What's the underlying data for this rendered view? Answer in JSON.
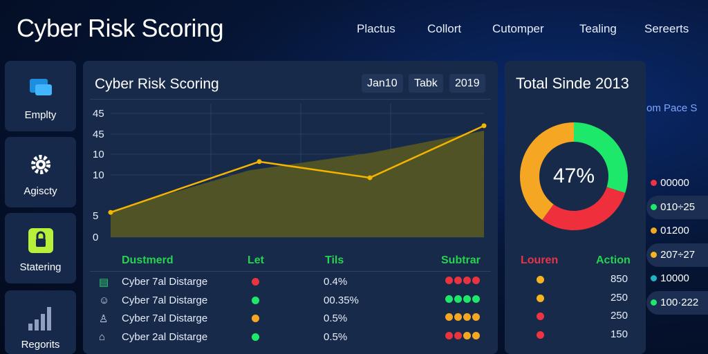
{
  "header": {
    "title": "Cyber Risk Scoring",
    "nav": [
      "Plactus",
      "Collort",
      "Cutomper",
      "Tealing",
      "Sereerts"
    ]
  },
  "sidebar": {
    "items": [
      {
        "label": "Emplty",
        "icon": "monitor-icon"
      },
      {
        "label": "Agiscty",
        "icon": "gear-icon"
      },
      {
        "label": "Statering",
        "icon": "lock-icon"
      },
      {
        "label": "Regorits",
        "icon": "bar-chart-icon"
      }
    ]
  },
  "main": {
    "title": "Cyber Risk Scoring",
    "chips": [
      "Jan10",
      "Tabk",
      "2019"
    ],
    "table": {
      "headers": [
        "Dustmerd",
        "Let",
        "Tils",
        "Subtrar"
      ],
      "rows": [
        {
          "icon": "document-icon",
          "name": "Cyber 7al Distarge",
          "let": "#e8343f",
          "tils": "0.4%",
          "subtrar": [
            "#e8343f",
            "#e8343f",
            "#e8343f",
            "#e8343f"
          ]
        },
        {
          "icon": "head-icon",
          "name": "Cyber 7al Distarge",
          "let": "#1ee86a",
          "tils": "00.35%",
          "subtrar": [
            "#1ee86a",
            "#1ee86a",
            "#1ee86a",
            "#1ee86a"
          ]
        },
        {
          "icon": "user-icon",
          "name": "Cyber 7al Distarge",
          "let": "#f5a623",
          "tils": "0.5%",
          "subtrar": [
            "#f5a623",
            "#f5a623",
            "#f5a623",
            "#f5a623"
          ]
        },
        {
          "icon": "bank-icon",
          "name": "Cyber 2al Distarge",
          "let": "#1ee86a",
          "tils": "0.5%",
          "subtrar": [
            "#e8343f",
            "#e8343f",
            "#f5a623",
            "#f5a623"
          ]
        }
      ]
    }
  },
  "chart_data": {
    "type": "line",
    "yticks": [
      "45",
      "45",
      "10",
      "10",
      "5",
      "0"
    ],
    "ylim": [
      0,
      50
    ],
    "line": {
      "color": "#f5b400",
      "values": [
        10,
        30.5,
        24,
        45
      ]
    },
    "area": {
      "color": "#5a5a1e",
      "values": [
        10.6,
        27,
        34,
        43
      ]
    }
  },
  "donut": {
    "title": "Total Sinde 2013",
    "center": "47%",
    "side_text": "om Pace S",
    "segments": [
      {
        "color": "#1ee86a",
        "value": 30
      },
      {
        "color": "#ef2f3c",
        "value": 30
      },
      {
        "color": "#f5a623",
        "value": 40
      }
    ]
  },
  "right_table": {
    "headers": [
      "Louren",
      "Action"
    ],
    "rows": [
      {
        "dot": "#f5b31f",
        "value": "850"
      },
      {
        "dot": "#f5b31f",
        "value": "250"
      },
      {
        "dot": "#ef3342",
        "value": "250"
      },
      {
        "dot": "#ef3342",
        "value": "150"
      }
    ]
  },
  "legend": [
    {
      "color": "#ef3342",
      "label": "00000"
    },
    {
      "color": "#1ee86a",
      "label": "010÷25"
    },
    {
      "color": "#f5a623",
      "label": "01200"
    },
    {
      "color": "#f5b31f",
      "label": "207÷27"
    },
    {
      "color": "#1fb3c4",
      "label": "10000"
    },
    {
      "color": "#1ee86a",
      "label": "100·222"
    }
  ]
}
